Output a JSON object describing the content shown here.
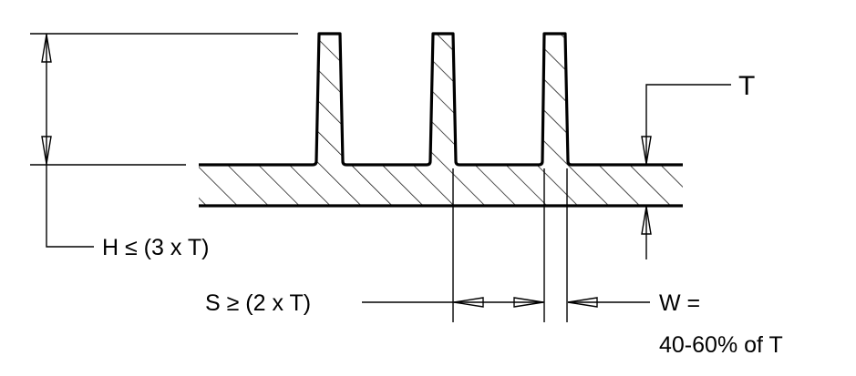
{
  "labels": {
    "thickness": "T",
    "height_rule": "H ≤ (3 x T)",
    "spacing_rule": "S ≥ (2 x T)",
    "width_rule_line1": "W =",
    "width_rule_line2": "40-60% of T"
  },
  "colors": {
    "line": "#000000",
    "background": "#ffffff"
  }
}
